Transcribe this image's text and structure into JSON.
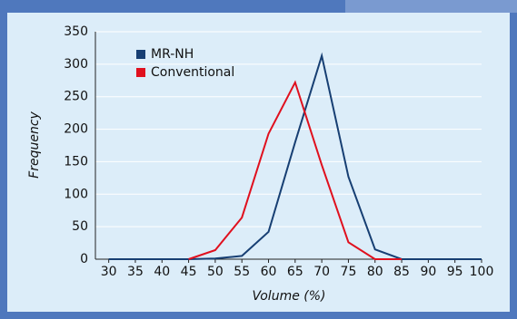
{
  "chart_data": {
    "type": "line",
    "x_label": "Volume (%)",
    "y_label": "Frequency",
    "x": [
      30,
      35,
      40,
      45,
      50,
      55,
      60,
      65,
      70,
      75,
      80,
      85,
      90,
      95,
      100
    ],
    "series": [
      {
        "name": "MR-NH",
        "color": "#173f73",
        "values": [
          0,
          0,
          0,
          0,
          1,
          5,
          42,
          180,
          313,
          127,
          15,
          0,
          0,
          0,
          0
        ]
      },
      {
        "name": "Conventional",
        "color": "#e0101e",
        "values": [
          null,
          null,
          null,
          0,
          14,
          64,
          193,
          272,
          145,
          26,
          0,
          0,
          null,
          null,
          null
        ]
      }
    ],
    "xlim": [
      27.5,
      100
    ],
    "xticks": [
      30,
      35,
      40,
      45,
      50,
      55,
      60,
      65,
      70,
      75,
      80,
      85,
      90,
      95,
      100
    ],
    "ylim": [
      0,
      350
    ],
    "yticks": [
      0,
      50,
      100,
      150,
      200,
      250,
      300,
      350
    ],
    "grid": true,
    "legend": "upper-left"
  }
}
